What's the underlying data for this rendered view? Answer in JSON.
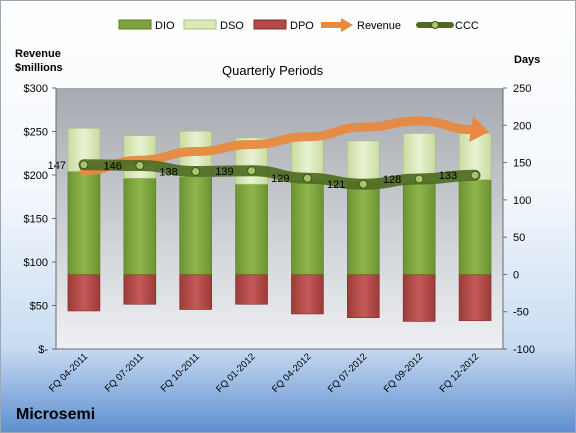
{
  "chart_data": {
    "type": "bar",
    "title": "Quarterly Periods",
    "company": "Microsemi",
    "left_axis_label": [
      "Revenue",
      "$millions"
    ],
    "right_axis_label": "Days",
    "left_ticks": [
      "$-",
      "$50",
      "$100",
      "$150",
      "$200",
      "$250",
      "$300"
    ],
    "right_ticks": [
      "-100",
      "-50",
      "0",
      "50",
      "100",
      "150",
      "200",
      "250"
    ],
    "left_ylim": [
      0,
      300
    ],
    "right_ylim": [
      -100,
      250
    ],
    "categories": [
      "FQ 04-2011",
      "FQ 07-2011",
      "FQ 10-2011",
      "FQ 01-2012",
      "FQ 04-2012",
      "FQ 07-2012",
      "FQ 09-2012",
      "FQ 12-2012"
    ],
    "legend": [
      "DIO",
      "DSO",
      "DPO",
      "Revenue",
      "CCC"
    ],
    "series": [
      {
        "name": "DIO",
        "axis": "right",
        "values": [
          138,
          129,
          131,
          121,
          126,
          124,
          124,
          127
        ]
      },
      {
        "name": "DSO",
        "axis": "right",
        "values": [
          58,
          57,
          61,
          62,
          60,
          55,
          65,
          62
        ]
      },
      {
        "name": "DPO",
        "axis": "right",
        "values": [
          -49,
          -40,
          -47,
          -40,
          -53,
          -58,
          -63,
          -62
        ]
      },
      {
        "name": "Revenue",
        "axis": "left",
        "values": [
          205,
          217,
          227,
          235,
          244,
          255,
          262,
          252
        ]
      },
      {
        "name": "CCC",
        "axis": "right",
        "values": [
          147,
          146,
          138,
          139,
          129,
          121,
          128,
          133
        ]
      }
    ],
    "colors": {
      "DIO": "#7ea23f",
      "DSO": "#d8e8b5",
      "DPO": "#b44a48",
      "Revenue": "#e8893f",
      "CCC": "#4f6b22"
    },
    "grid": false,
    "legend_position": "top"
  }
}
